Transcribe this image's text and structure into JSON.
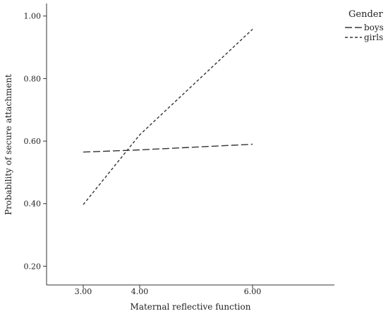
{
  "chart_data": {
    "type": "line",
    "title": "",
    "xlabel": "Maternal reflective function",
    "ylabel": "Probability of secure attachment",
    "x": [
      3.0,
      4.0,
      6.0
    ],
    "x_ticks": [
      "3.00",
      "4.00",
      "6.00"
    ],
    "y_ticks": [
      "0.20",
      "0.40",
      "0.60",
      "0.80",
      "1.00"
    ],
    "y_tick_values": [
      0.2,
      0.4,
      0.6,
      0.8,
      1.0
    ],
    "xlim": [
      2.35,
      7.45
    ],
    "ylim": [
      0.14,
      1.04
    ],
    "grid": false,
    "legend": {
      "title": "Gender",
      "placement": "top-right"
    },
    "series": [
      {
        "name": "boys",
        "values": [
          0.565,
          0.572,
          0.59
        ],
        "style": "long-dash",
        "color": "#333333"
      },
      {
        "name": "girls",
        "values": [
          0.397,
          0.62,
          0.958
        ],
        "style": "short-dash",
        "color": "#333333"
      }
    ]
  }
}
